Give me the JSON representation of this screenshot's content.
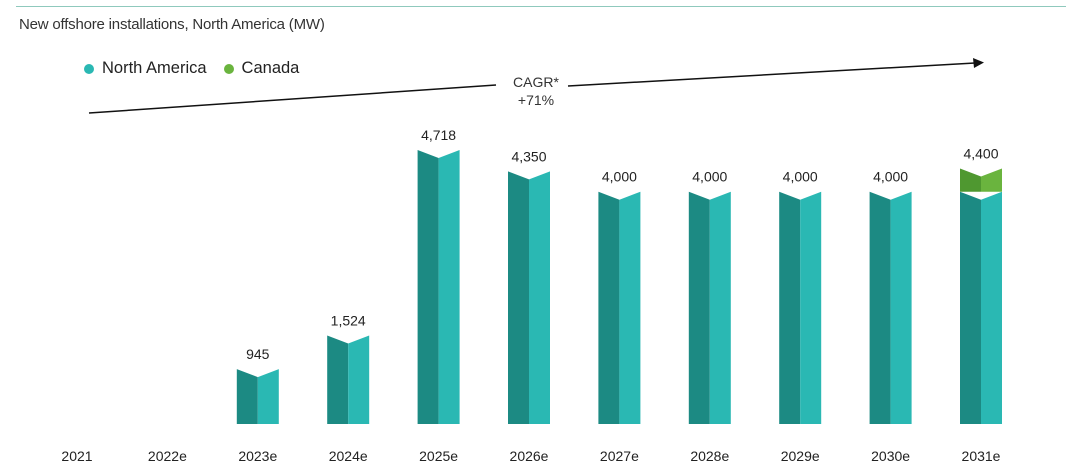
{
  "chart_data": {
    "type": "bar",
    "title": "New offshore installations, North America (MW)",
    "categories": [
      "2021",
      "2022e",
      "2023e",
      "2024e",
      "2025e",
      "2026e",
      "2027e",
      "2028e",
      "2029e",
      "2030e",
      "2031e"
    ],
    "series": [
      {
        "name": "North America",
        "values": [
          0,
          0,
          945,
          1524,
          4718,
          4350,
          4000,
          4000,
          4000,
          4000,
          4000
        ]
      },
      {
        "name": "Canada",
        "values": [
          0,
          0,
          0,
          0,
          0,
          0,
          0,
          0,
          0,
          0,
          400
        ]
      }
    ],
    "data_labels": [
      "",
      "",
      "945",
      "1,524",
      "4,718",
      "4,350",
      "4,000",
      "4,000",
      "4,000",
      "4,000",
      "4,400"
    ],
    "annotation": {
      "line1": "CAGR*",
      "line2": "+71%"
    },
    "stacked": true,
    "xlabel": "",
    "ylabel": "",
    "ylim": [
      0,
      4718
    ],
    "grid": false,
    "legend": "top-left",
    "colors": {
      "North America": "#2ab8b3",
      "Canada": "#6ab43e",
      "North America dark face": "#1c8a83",
      "Canada dark face": "#4f9830",
      "arrow": "#111111"
    }
  }
}
